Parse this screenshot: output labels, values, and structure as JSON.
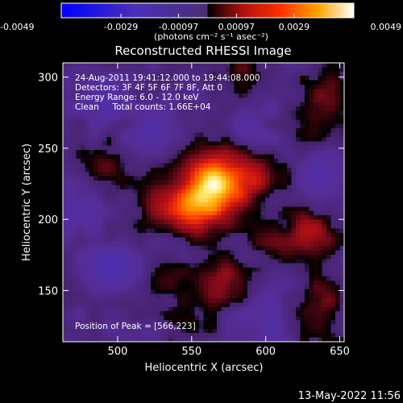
{
  "chart_data": {
    "type": "heatmap",
    "title": "Reconstructed RHESSI Image",
    "xlabel": "Heliocentric X (arcsec)",
    "ylabel": "Heliocentric Y (arcsec)",
    "xlim": [
      463,
      653
    ],
    "ylim": [
      114,
      310
    ],
    "x_ticks": [
      500,
      550,
      600,
      650
    ],
    "y_ticks": [
      150,
      200,
      250,
      300
    ],
    "colorbar": {
      "range": [
        -0.0049,
        0.0049
      ],
      "tick_values": [
        -0.0049,
        -0.0029,
        -0.00097,
        0.00097,
        0.0029,
        0.0049
      ],
      "tick_labels": [
        "-0.0049",
        "-0.0029",
        "-0.00097",
        "0.00097",
        "0.0029",
        "0.0049"
      ],
      "units_label": "(photons cm⁻² s⁻¹ asec⁻²)"
    },
    "annotations": [
      "24-Aug-2011 19:41:12.000 to 19:44:08.000",
      "Detectors: 3F 4F 5F 6F 7F 8F, Att 0",
      "Energy Range: 6.0 - 12.0 keV",
      "Clean     Total counts: 1.66E+04"
    ],
    "peak_label": "Position of Peak = [566,223]",
    "sources": [
      {
        "x": 566,
        "y": 223,
        "value": 0.0049
      },
      {
        "x": 548,
        "y": 205,
        "value": 0.0021
      },
      {
        "x": 595,
        "y": 232,
        "value": 0.0014
      },
      {
        "x": 528,
        "y": 212,
        "value": 0.0012
      },
      {
        "x": 492,
        "y": 237,
        "value": 0.0014
      },
      {
        "x": 585,
        "y": 302,
        "value": 0.0011
      },
      {
        "x": 645,
        "y": 288,
        "value": 0.0012
      },
      {
        "x": 628,
        "y": 268,
        "value": 0.0008
      },
      {
        "x": 632,
        "y": 190,
        "value": 0.002
      },
      {
        "x": 605,
        "y": 183,
        "value": 0.001
      },
      {
        "x": 568,
        "y": 155,
        "value": 0.002
      },
      {
        "x": 535,
        "y": 158,
        "value": 0.0008
      },
      {
        "x": 635,
        "y": 142,
        "value": 0.0012
      },
      {
        "x": 547,
        "y": 125,
        "value": 0.0009
      },
      {
        "x": 640,
        "y": 120,
        "value": 0.0008
      }
    ],
    "negatives": [
      {
        "x": 495,
        "y": 165,
        "value": -0.0017
      },
      {
        "x": 490,
        "y": 285,
        "value": -0.0012
      },
      {
        "x": 525,
        "y": 260,
        "value": -0.0011
      },
      {
        "x": 640,
        "y": 230,
        "value": -0.0011
      },
      {
        "x": 600,
        "y": 130,
        "value": -0.001
      },
      {
        "x": 475,
        "y": 205,
        "value": -0.001
      },
      {
        "x": 590,
        "y": 265,
        "value": -0.0008
      }
    ]
  },
  "footer": {
    "timestamp": "13-May-2022 11:56"
  }
}
